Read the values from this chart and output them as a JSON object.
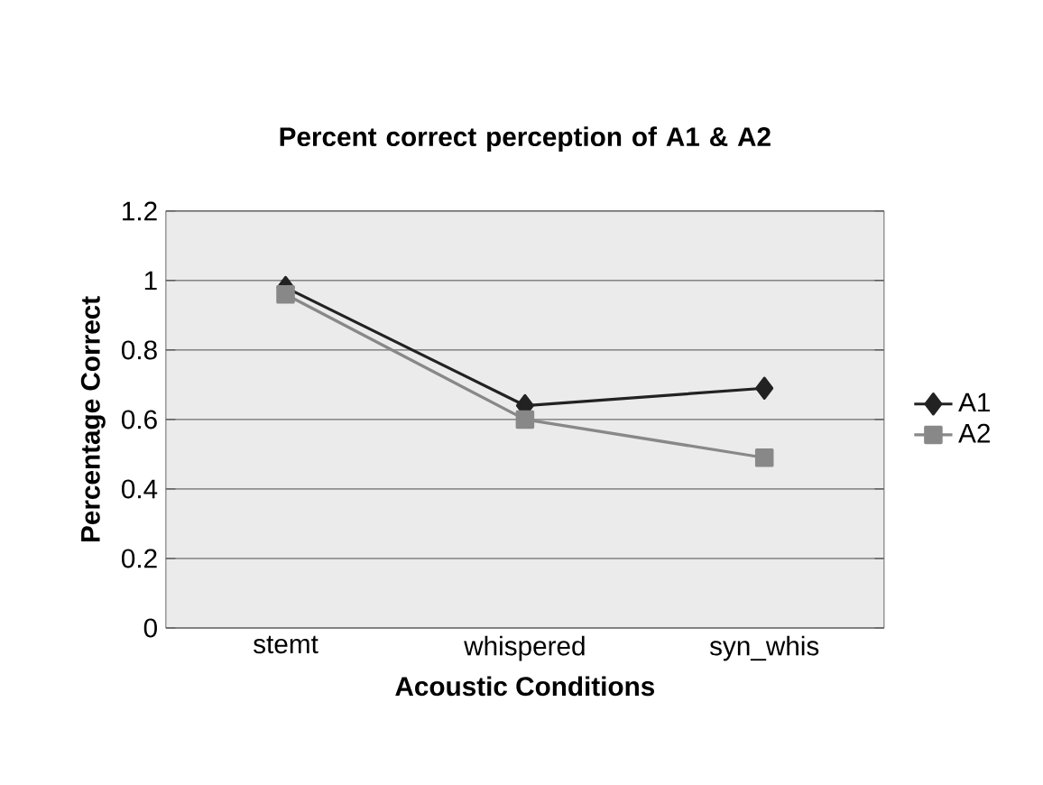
{
  "chart_data": {
    "type": "line",
    "title": "Percent correct perception of A1 & A2",
    "xlabel": "Acoustic Conditions",
    "ylabel": "Percentage Correct",
    "categories": [
      "stemt",
      "whispered",
      "syn_whis"
    ],
    "series": [
      {
        "name": "A1",
        "color": "#222222",
        "marker": "diamond",
        "values": [
          0.98,
          0.64,
          0.69
        ]
      },
      {
        "name": "A2",
        "color": "#888888",
        "marker": "square",
        "values": [
          0.96,
          0.6,
          0.49
        ]
      }
    ],
    "ylim": [
      0,
      1.2
    ],
    "yticks": [
      0,
      0.2,
      0.4,
      0.6,
      0.8,
      1,
      1.2
    ],
    "grid": "y",
    "legend": "right"
  }
}
